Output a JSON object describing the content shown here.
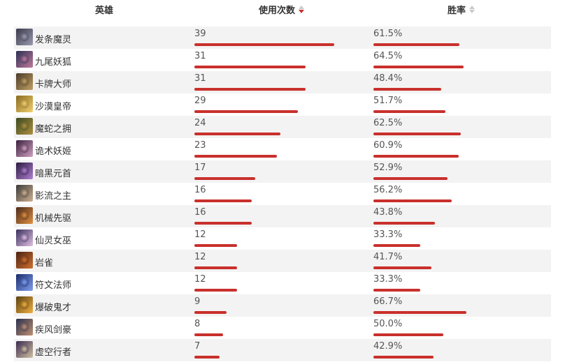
{
  "header": {
    "hero": "英雄",
    "usage": "使用次数",
    "winrate": "胜率"
  },
  "colors": {
    "bar": "#c9302c"
  },
  "rows": [
    {
      "name": "发条魔灵",
      "usage": "39",
      "winrate": "61.5%",
      "usage_value": 39,
      "winrate_value": 61.5,
      "icon": "orianna-portrait-icon",
      "c1": "#3a3a4a",
      "c2": "#9a9ab0"
    },
    {
      "name": "九尾妖狐",
      "usage": "31",
      "winrate": "64.5%",
      "usage_value": 31,
      "winrate_value": 64.5,
      "icon": "ahri-portrait-icon",
      "c1": "#2b2f55",
      "c2": "#c07a9a"
    },
    {
      "name": "卡牌大师",
      "usage": "31",
      "winrate": "48.4%",
      "usage_value": 31,
      "winrate_value": 48.4,
      "icon": "twisted-fate-portrait-icon",
      "c1": "#4a3a2a",
      "c2": "#c0a060"
    },
    {
      "name": "沙漠皇帝",
      "usage": "29",
      "winrate": "51.7%",
      "usage_value": 29,
      "winrate_value": 51.7,
      "icon": "azir-portrait-icon",
      "c1": "#8a6a20",
      "c2": "#f0d070"
    },
    {
      "name": "魔蛇之拥",
      "usage": "24",
      "winrate": "62.5%",
      "usage_value": 24,
      "winrate_value": 62.5,
      "icon": "cassiopeia-portrait-icon",
      "c1": "#3a4a20",
      "c2": "#b09040"
    },
    {
      "name": "诡术妖姬",
      "usage": "23",
      "winrate": "60.9%",
      "usage_value": 23,
      "winrate_value": 60.9,
      "icon": "leblanc-portrait-icon",
      "c1": "#3a2040",
      "c2": "#d0a0c0"
    },
    {
      "name": "暗黑元首",
      "usage": "17",
      "winrate": "52.9%",
      "usage_value": 17,
      "winrate_value": 52.9,
      "icon": "syndra-portrait-icon",
      "c1": "#2a1a40",
      "c2": "#b080d0"
    },
    {
      "name": "影流之主",
      "usage": "16",
      "winrate": "56.2%",
      "usage_value": 16,
      "winrate_value": 56.2,
      "icon": "zed-portrait-icon",
      "c1": "#3a3a3a",
      "c2": "#d0b090"
    },
    {
      "name": "机械先驱",
      "usage": "16",
      "winrate": "43.8%",
      "usage_value": 16,
      "winrate_value": 43.8,
      "icon": "viktor-portrait-icon",
      "c1": "#4a2a1a",
      "c2": "#e09040"
    },
    {
      "name": "仙灵女巫",
      "usage": "12",
      "winrate": "33.3%",
      "usage_value": 12,
      "winrate_value": 33.3,
      "icon": "lulu-portrait-icon",
      "c1": "#3a3060",
      "c2": "#e0c0e0"
    },
    {
      "name": "岩雀",
      "usage": "12",
      "winrate": "41.7%",
      "usage_value": 12,
      "winrate_value": 41.7,
      "icon": "taliyah-portrait-icon",
      "c1": "#4a2010",
      "c2": "#d07030"
    },
    {
      "name": "符文法师",
      "usage": "12",
      "winrate": "33.3%",
      "usage_value": 12,
      "winrate_value": 33.3,
      "icon": "ryze-portrait-icon",
      "c1": "#1a2a6a",
      "c2": "#80a0f0"
    },
    {
      "name": "爆破鬼才",
      "usage": "9",
      "winrate": "66.7%",
      "usage_value": 9,
      "winrate_value": 66.7,
      "icon": "ziggs-portrait-icon",
      "c1": "#5a4010",
      "c2": "#f0b040"
    },
    {
      "name": "疾风剑豪",
      "usage": "8",
      "winrate": "50.0%",
      "usage_value": 8,
      "winrate_value": 50.0,
      "icon": "yasuo-portrait-icon",
      "c1": "#2a3050",
      "c2": "#c09070"
    },
    {
      "name": "虚空行者",
      "usage": "7",
      "winrate": "42.9%",
      "usage_value": 7,
      "winrate_value": 42.9,
      "icon": "kassadin-portrait-icon",
      "c1": "#3a2a50",
      "c2": "#d0c0a0"
    }
  ]
}
